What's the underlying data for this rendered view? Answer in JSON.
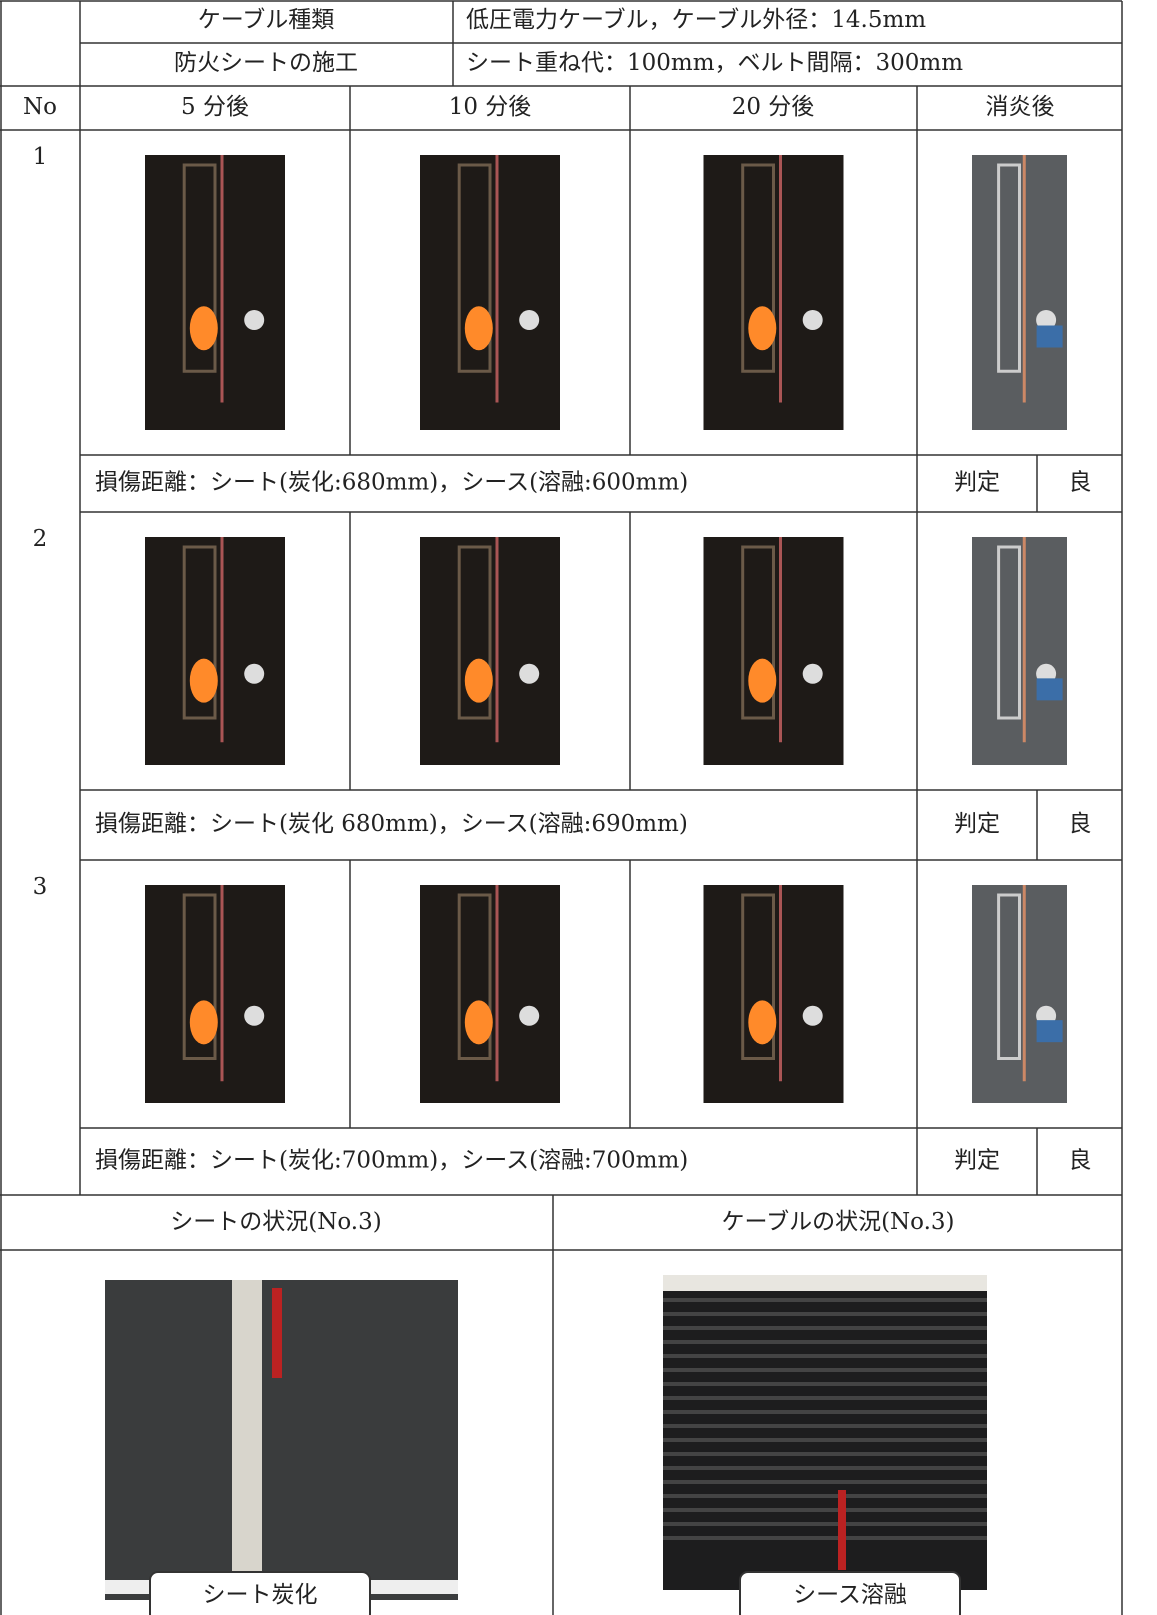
{
  "header": {
    "cable_type_label": "ケーブル種類",
    "cable_type": "低圧電力ケーブル，ケーブル外径：14.5mm",
    "install_label": "防火シートの施工",
    "install": "シート重ね代：100mm，ベルト間隔：300mm"
  },
  "columns": [
    "No",
    "5 分後",
    "10 分後",
    "20 分後",
    "消炎後"
  ],
  "tests": [
    {
      "no": "1",
      "damage": "損傷距離：シート(炭化:680mm)，シース(溶融:600mm)",
      "judgement_label": "判定",
      "judgement": "良"
    },
    {
      "no": "2",
      "damage": "損傷距離：シート(炭化 680mm)，シース(溶融:690mm)",
      "judgement_label": "判定",
      "judgement": "良"
    },
    {
      "no": "3",
      "damage": "損傷距離：シート(炭化:700mm)，シース(溶融:700mm)",
      "judgement_label": "判定",
      "judgement": "良"
    }
  ],
  "bottom": {
    "sheet_title": "シートの状況(No.3)",
    "sheet_caption": "シート炭化",
    "cable_title": "ケーブルの状況(No.3)",
    "cable_caption": "シース溶融"
  }
}
